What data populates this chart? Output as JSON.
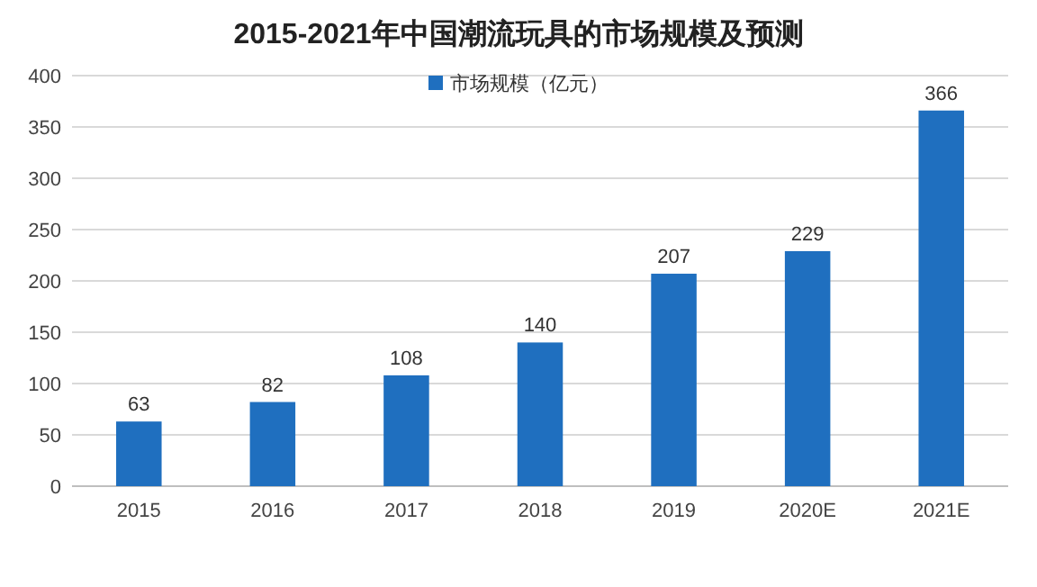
{
  "chart_data": {
    "type": "bar",
    "title": "2015-2021年中国潮流玩具的市场规模及预测",
    "categories": [
      "2015",
      "2016",
      "2017",
      "2018",
      "2019",
      "2020E",
      "2021E"
    ],
    "series": [
      {
        "name": "市场规模（亿元）",
        "color": "#1f6fbf",
        "values": [
          63,
          82,
          108,
          140,
          207,
          229,
          366
        ]
      }
    ],
    "ylim": [
      0,
      400
    ],
    "yticks": [
      0,
      50,
      100,
      150,
      200,
      250,
      300,
      350,
      400
    ],
    "grid": "y",
    "legend": "top",
    "data_labels": true
  }
}
